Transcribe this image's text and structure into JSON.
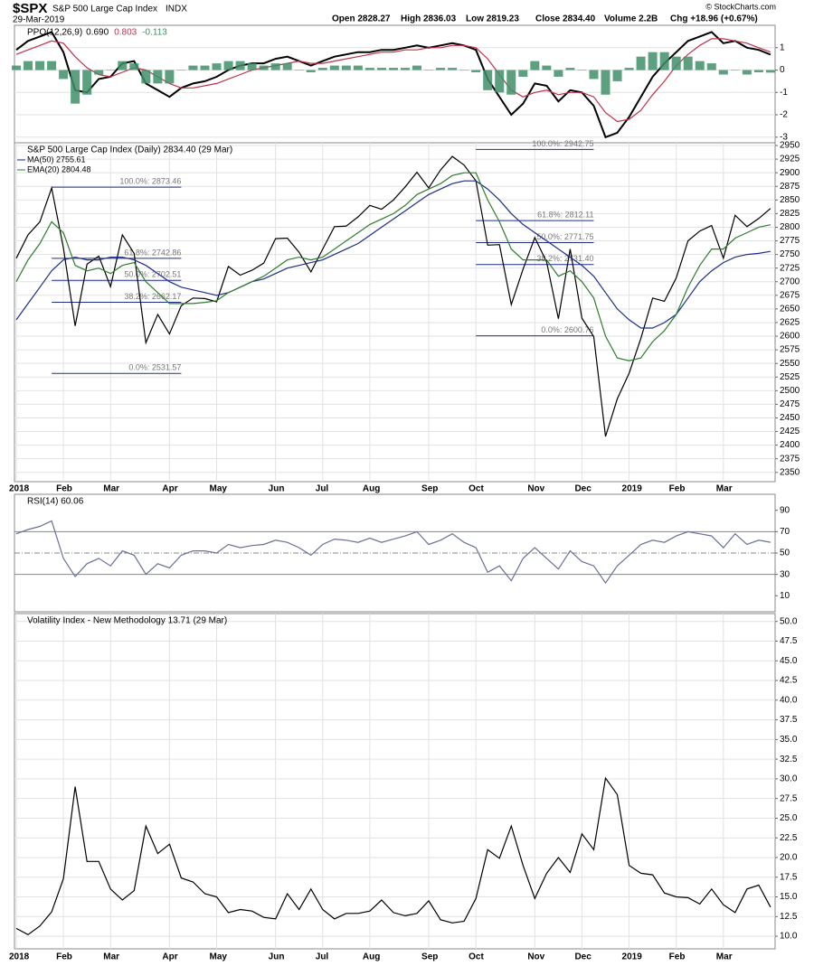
{
  "header": {
    "symbol": "$SPX",
    "name": "S&P 500 Large Cap Index",
    "exchange": "INDX",
    "date": "29-Mar-2019",
    "open": "Open 2828.27",
    "high": "High 2836.03",
    "low": "Low 2819.23",
    "close": "Close 2834.40",
    "volume": "Volume 2.2B",
    "change": "Chg +18.96 (+0.67%)",
    "credit": "© StockCharts.com"
  },
  "chart_data": [
    {
      "type": "line",
      "title": "PPO(12,26,9)",
      "ylim": [
        -3.25,
        2.0
      ],
      "yticks": [
        -3,
        -2,
        -1,
        0,
        1
      ],
      "grid": true,
      "series": [
        {
          "name": "0.690",
          "color": "#000000",
          "values": [
            0.9,
            1.3,
            1.5,
            1.7,
            0.8,
            -0.9,
            -1.0,
            -0.4,
            -0.3,
            0.3,
            0.4,
            -0.6,
            -0.9,
            -1.2,
            -0.8,
            -0.6,
            -0.5,
            -0.3,
            0,
            0.2,
            0.3,
            0.3,
            0.5,
            0.6,
            0.4,
            0.2,
            0.4,
            0.6,
            0.7,
            0.8,
            0.8,
            0.9,
            0.9,
            1.0,
            1.1,
            1.0,
            1.1,
            1.2,
            1.1,
            0.9,
            -0.4,
            -1.2,
            -2.0,
            -1.5,
            -0.6,
            -0.7,
            -1.4,
            -0.9,
            -1.0,
            -1.6,
            -3.0,
            -2.8,
            -2.1,
            -1.2,
            -0.3,
            0.3,
            0.8,
            1.3,
            1.5,
            1.7,
            1.2,
            1.3,
            1.0,
            0.9,
            0.69
          ]
        },
        {
          "name": "0.803",
          "color": "#c0304a",
          "values": [
            0.7,
            0.9,
            1.1,
            1.3,
            1.2,
            0.6,
            0.1,
            -0.2,
            -0.3,
            -0.1,
            0.1,
            0,
            -0.3,
            -0.6,
            -0.8,
            -0.8,
            -0.7,
            -0.6,
            -0.4,
            -0.2,
            0,
            0.1,
            0.2,
            0.3,
            0.4,
            0.3,
            0.3,
            0.4,
            0.5,
            0.6,
            0.7,
            0.8,
            0.8,
            0.9,
            0.9,
            1.0,
            1.0,
            1.1,
            1.1,
            1.0,
            0.5,
            -0.2,
            -0.9,
            -1.2,
            -1.0,
            -0.9,
            -1.1,
            -1.0,
            -1.0,
            -1.2,
            -1.9,
            -2.3,
            -2.2,
            -1.8,
            -1.1,
            -0.5,
            0.2,
            0.7,
            1.1,
            1.4,
            1.4,
            1.3,
            1.2,
            1.0,
            0.803
          ]
        },
        {
          "name": "-0.113",
          "color": "#3f8f6a",
          "type": "bar",
          "values": [
            0.2,
            0.4,
            0.4,
            0.4,
            -0.4,
            -1.5,
            -1.1,
            -0.2,
            0,
            0.4,
            0.3,
            -0.6,
            -0.6,
            -0.6,
            0,
            0.2,
            0.2,
            0.3,
            0.4,
            0.4,
            0.3,
            0.2,
            0.3,
            0.3,
            0,
            -0.1,
            0.1,
            0.2,
            0.2,
            0.2,
            0.1,
            0.1,
            0.1,
            0.1,
            0.2,
            0,
            0.1,
            0.1,
            0,
            -0.1,
            -0.9,
            -1.0,
            -1.1,
            -0.3,
            0.4,
            0.2,
            -0.3,
            0.1,
            0,
            -0.4,
            -1.1,
            -0.5,
            0.1,
            0.6,
            0.8,
            0.8,
            0.6,
            0.6,
            0.4,
            0.3,
            -0.2,
            0,
            -0.2,
            -0.1,
            -0.113
          ]
        }
      ]
    },
    {
      "type": "line",
      "title": "S&P 500 Large Cap Index (Daily) 2834.40 (29 Mar)",
      "ylim": [
        2333,
        2955
      ],
      "yticks": [
        2350,
        2375,
        2400,
        2425,
        2450,
        2475,
        2500,
        2525,
        2550,
        2575,
        2600,
        2625,
        2650,
        2675,
        2700,
        2725,
        2750,
        2775,
        2800,
        2825,
        2850,
        2875,
        2900,
        2925,
        2950
      ],
      "grid": true,
      "categories": [
        "2018",
        null,
        null,
        null,
        "Feb",
        null,
        null,
        null,
        "Mar",
        null,
        null,
        null,
        null,
        "Apr",
        null,
        null,
        null,
        "May",
        null,
        null,
        null,
        null,
        "Jun",
        null,
        null,
        null,
        "Jul",
        null,
        null,
        null,
        "Aug",
        null,
        null,
        null,
        null,
        "Sep",
        null,
        null,
        null,
        "Oct",
        null,
        null,
        null,
        null,
        "Nov",
        null,
        null,
        null,
        "Dec",
        null,
        null,
        null,
        "2019",
        null,
        null,
        null,
        "Feb",
        null,
        null,
        null,
        "Mar",
        null,
        null,
        null,
        null
      ],
      "series": [
        {
          "color": "#000000",
          "values": [
            2743,
            2786,
            2810,
            2872,
            2762,
            2619,
            2732,
            2747,
            2691,
            2786,
            2752,
            2588,
            2640,
            2604,
            2656,
            2670,
            2669,
            2663,
            2728,
            2712,
            2721,
            2734,
            2779,
            2780,
            2754,
            2718,
            2760,
            2801,
            2802,
            2819,
            2840,
            2833,
            2850,
            2874,
            2901,
            2872,
            2905,
            2930,
            2914,
            2885,
            2767,
            2768,
            2658,
            2723,
            2781,
            2736,
            2632,
            2760,
            2633,
            2599,
            2416,
            2485,
            2532,
            2596,
            2670,
            2664,
            2707,
            2775,
            2793,
            2803,
            2743,
            2822,
            2801,
            2816,
            2834.4
          ]
        },
        {
          "name": "MA(50) 2755.61",
          "color": "#1f2d8a",
          "values": [
            2630,
            2660,
            2690,
            2720,
            2740,
            2745,
            2740,
            2740,
            2745,
            2745,
            2740,
            2730,
            2715,
            2700,
            2690,
            2685,
            2680,
            2675,
            2680,
            2690,
            2700,
            2705,
            2715,
            2725,
            2730,
            2735,
            2740,
            2750,
            2760,
            2770,
            2785,
            2800,
            2815,
            2830,
            2845,
            2860,
            2870,
            2880,
            2885,
            2885,
            2870,
            2850,
            2825,
            2805,
            2790,
            2775,
            2760,
            2745,
            2730,
            2710,
            2680,
            2650,
            2630,
            2615,
            2615,
            2625,
            2640,
            2670,
            2700,
            2720,
            2735,
            2745,
            2750,
            2752,
            2755.61
          ]
        },
        {
          "name": "EMA(20) 2804.48",
          "color": "#2e7d2e",
          "values": [
            2700,
            2740,
            2770,
            2810,
            2790,
            2730,
            2720,
            2725,
            2715,
            2730,
            2735,
            2700,
            2680,
            2660,
            2660,
            2660,
            2662,
            2665,
            2680,
            2690,
            2700,
            2710,
            2725,
            2740,
            2745,
            2740,
            2745,
            2760,
            2775,
            2790,
            2805,
            2815,
            2825,
            2840,
            2860,
            2870,
            2880,
            2895,
            2900,
            2900,
            2850,
            2810,
            2760,
            2740,
            2740,
            2740,
            2710,
            2720,
            2700,
            2670,
            2600,
            2560,
            2555,
            2560,
            2590,
            2610,
            2640,
            2690,
            2730,
            2760,
            2760,
            2780,
            2790,
            2800,
            2804.48
          ]
        }
      ],
      "annotations": [
        {
          "text": "100.0%: 2873.46",
          "value": 2873.46
        },
        {
          "text": "61.8%: 2742.86",
          "value": 2742.86
        },
        {
          "text": "50.0%: 2702.51",
          "value": 2702.51
        },
        {
          "text": "38.2%: 2662.17",
          "value": 2662.17
        },
        {
          "text": "0.0%: 2531.57",
          "value": 2531.57
        },
        {
          "text": "100.0%: 2942.75",
          "value": 2942.75
        },
        {
          "text": "61.8%: 2812.11",
          "value": 2812.11
        },
        {
          "text": "50.0%: 2771.75",
          "value": 2771.75
        },
        {
          "text": "38.2%: 2731.40",
          "value": 2731.4
        },
        {
          "text": "0.0%: 2600.76",
          "value": 2600.76
        }
      ]
    },
    {
      "type": "line",
      "title": "RSI(14) 60.06",
      "ylim": [
        -5,
        105
      ],
      "yticks": [
        10,
        30,
        50,
        70,
        90
      ],
      "grid": false,
      "reference_lines": [
        30,
        70
      ],
      "midline": 50,
      "series": [
        {
          "color": "#6a6f9a",
          "values": [
            68,
            72,
            75,
            80,
            45,
            28,
            40,
            45,
            38,
            52,
            48,
            30,
            40,
            36,
            48,
            52,
            52,
            50,
            58,
            55,
            57,
            58,
            62,
            60,
            55,
            48,
            58,
            63,
            62,
            60,
            64,
            60,
            63,
            66,
            70,
            58,
            62,
            68,
            60,
            55,
            32,
            38,
            24,
            45,
            55,
            45,
            35,
            52,
            42,
            38,
            22,
            38,
            48,
            58,
            62,
            60,
            66,
            70,
            68,
            66,
            55,
            68,
            58,
            62,
            60.06
          ]
        }
      ]
    },
    {
      "type": "line",
      "title": "Volatility Index - New Methodology 13.71 (29 Mar)",
      "ylim": [
        8.4,
        51
      ],
      "grid": true,
      "yticks": [
        {
          "value": 10,
          "label": "10.0"
        },
        {
          "value": 12.5,
          "label": "12.5"
        },
        {
          "value": 15,
          "label": "15.0"
        },
        {
          "value": 17.5,
          "label": "17.5"
        },
        {
          "value": 20,
          "label": "20.0"
        },
        {
          "value": 22.5,
          "label": "22.5"
        },
        {
          "value": 25,
          "label": "25.0"
        },
        {
          "value": 27.5,
          "label": "27.5"
        },
        {
          "value": 30,
          "label": "30.0"
        },
        {
          "value": 32.5,
          "label": "32.5"
        },
        {
          "value": 35,
          "label": "35.0"
        },
        {
          "value": 37.5,
          "label": "37.5"
        },
        {
          "value": 40,
          "label": "40.0"
        },
        {
          "value": 42.5,
          "label": "42.5"
        },
        {
          "value": 45,
          "label": "45.0"
        },
        {
          "value": 47.5,
          "label": "47.5"
        },
        {
          "value": 50,
          "label": "50.0"
        }
      ],
      "categories": [
        "2018",
        null,
        null,
        null,
        "Feb",
        null,
        null,
        null,
        "Mar",
        null,
        null,
        null,
        null,
        "Apr",
        null,
        null,
        null,
        "May",
        null,
        null,
        null,
        null,
        "Jun",
        null,
        null,
        null,
        "Jul",
        null,
        null,
        null,
        "Aug",
        null,
        null,
        null,
        null,
        "Sep",
        null,
        null,
        null,
        "Oct",
        null,
        null,
        null,
        null,
        "Nov",
        null,
        null,
        null,
        "Dec",
        null,
        null,
        null,
        "2019",
        null,
        null,
        null,
        "Feb",
        null,
        null,
        null,
        "Mar",
        null,
        null,
        null,
        null
      ],
      "series": [
        {
          "color": "#000000",
          "values": [
            11,
            10.2,
            11.3,
            13.1,
            17.3,
            29,
            19.5,
            19.5,
            16,
            14.6,
            15.8,
            24,
            20.5,
            21.7,
            17.4,
            16.9,
            15.4,
            15,
            13,
            13.4,
            13.2,
            12.4,
            12.2,
            15.4,
            13.4,
            16,
            13.4,
            12.2,
            12.9,
            12.9,
            13.2,
            14.6,
            13,
            12.6,
            12.9,
            14.5,
            12.1,
            11.7,
            11.9,
            14.8,
            21,
            19.9,
            24,
            19,
            14.8,
            18,
            20,
            18.1,
            23,
            21,
            30.1,
            28,
            19,
            18,
            17.8,
            15.5,
            15,
            14.9,
            14.1,
            16,
            14,
            13,
            16,
            16.5,
            13.71
          ]
        }
      ]
    }
  ]
}
